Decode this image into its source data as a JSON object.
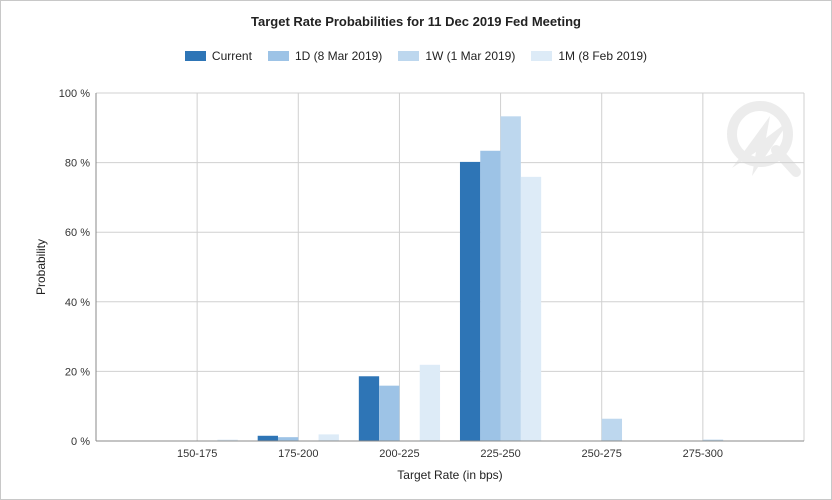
{
  "chart_data": {
    "type": "bar",
    "title": "Target Rate Probabilities for 11 Dec 2019 Fed Meeting",
    "xlabel": "Target Rate (in bps)",
    "ylabel": "Probability",
    "categories": [
      "150-175",
      "175-200",
      "200-225",
      "225-250",
      "250-275",
      "275-300"
    ],
    "series": [
      {
        "name": "Current",
        "color": "#2e75b6",
        "values": [
          0.0,
          1.5,
          18.6,
          80.2,
          0.0,
          0.0
        ]
      },
      {
        "name": "1D (8 Mar 2019)",
        "color": "#9dc3e6",
        "values": [
          0.0,
          1.1,
          15.9,
          83.4,
          0.0,
          0.0
        ]
      },
      {
        "name": "1W (1 Mar 2019)",
        "color": "#bdd7ee",
        "values": [
          0.0,
          0.0,
          0.0,
          93.3,
          6.4,
          0.4
        ]
      },
      {
        "name": "1M (8 Feb 2019)",
        "color": "#ddebf7",
        "values": [
          0.4,
          1.9,
          21.9,
          75.9,
          0.0,
          0.0
        ]
      }
    ],
    "yticks": [
      "0 %",
      "20 %",
      "40 %",
      "60 %",
      "80 %",
      "100 %"
    ],
    "ylim": [
      0,
      100
    ],
    "grid": true,
    "legend_position": "top"
  }
}
